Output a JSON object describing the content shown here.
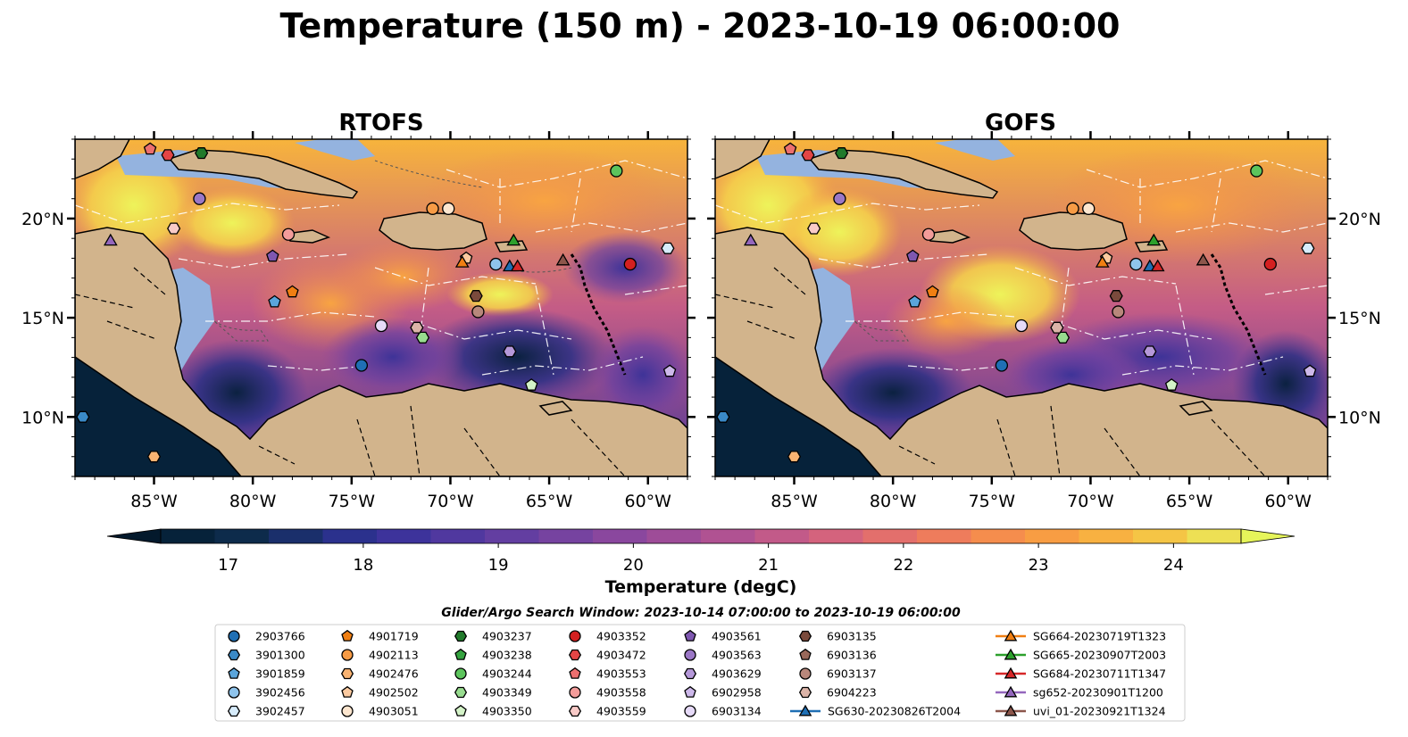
{
  "figure": {
    "title": "Temperature (150 m) - 2023-10-19 06:00:00"
  },
  "chart_data": {
    "type": "heatmap",
    "variable_label": "Temperature (degC)",
    "panels": [
      {
        "title": "RTOFS",
        "xlim": [
          -89,
          -58
        ],
        "ylim": [
          7,
          24
        ]
      },
      {
        "title": "GOFS",
        "xlim": [
          -89,
          -58
        ],
        "ylim": [
          7,
          24
        ]
      }
    ],
    "xticks": [
      {
        "value": -85,
        "label": "85°W"
      },
      {
        "value": -80,
        "label": "80°W"
      },
      {
        "value": -75,
        "label": "75°W"
      },
      {
        "value": -70,
        "label": "70°W"
      },
      {
        "value": -65,
        "label": "65°W"
      },
      {
        "value": -60,
        "label": "60°W"
      }
    ],
    "yticks": [
      {
        "value": 10,
        "label": "10°N"
      },
      {
        "value": 15,
        "label": "15°N"
      },
      {
        "value": 20,
        "label": "20°N"
      }
    ],
    "colorbar": {
      "vmin": 16.5,
      "vmax": 24.5,
      "extend": "both",
      "ticks": [
        17,
        18,
        19,
        20,
        21,
        22,
        23,
        24
      ],
      "colors": [
        "#06223a",
        "#0d2b4b",
        "#1a2f6b",
        "#2b318d",
        "#3d339b",
        "#50389f",
        "#633ea1",
        "#7643a0",
        "#8a479e",
        "#9e4c98",
        "#b05292",
        "#c25a89",
        "#d4637d",
        "#e36f6c",
        "#ee7c5c",
        "#f58d4d",
        "#f89d43",
        "#f8b141",
        "#f5c545",
        "#ede054"
      ],
      "under_color": "#03192c",
      "over_color": "#e6f55a"
    },
    "search_window": "Glider/Argo Search Window: 2023-10-14 07:00:00 to 2023-10-19 06:00:00",
    "legend": [
      {
        "name": "2903766",
        "marker": "circle",
        "color": "#1f6fb4"
      },
      {
        "name": "3901300",
        "marker": "hexagon",
        "color": "#3a89c6"
      },
      {
        "name": "3901859",
        "marker": "pentagon",
        "color": "#5aa5db"
      },
      {
        "name": "3902456",
        "marker": "circle",
        "color": "#8fc4ec"
      },
      {
        "name": "3902457",
        "marker": "hexagon",
        "color": "#d7ecfb"
      },
      {
        "name": "4901719",
        "marker": "pentagon",
        "color": "#f07f12"
      },
      {
        "name": "4902113",
        "marker": "circle",
        "color": "#f79b45"
      },
      {
        "name": "4902476",
        "marker": "hexagon",
        "color": "#f9b372"
      },
      {
        "name": "4902502",
        "marker": "pentagon",
        "color": "#fbcaa0"
      },
      {
        "name": "4903051",
        "marker": "circle",
        "color": "#fde6cf"
      },
      {
        "name": "4903237",
        "marker": "hexagon",
        "color": "#217a2b"
      },
      {
        "name": "4903238",
        "marker": "pentagon",
        "color": "#35a33f"
      },
      {
        "name": "4903244",
        "marker": "circle",
        "color": "#5cc45c"
      },
      {
        "name": "4903349",
        "marker": "hexagon",
        "color": "#98dc8f"
      },
      {
        "name": "4903350",
        "marker": "pentagon",
        "color": "#d4f3c8"
      },
      {
        "name": "4903352",
        "marker": "circle",
        "color": "#d42020"
      },
      {
        "name": "4903472",
        "marker": "hexagon",
        "color": "#e44545"
      },
      {
        "name": "4903553",
        "marker": "pentagon",
        "color": "#ec6f6f"
      },
      {
        "name": "4903558",
        "marker": "circle",
        "color": "#f39c9a"
      },
      {
        "name": "4903559",
        "marker": "hexagon",
        "color": "#f9cbc8"
      },
      {
        "name": "4903561",
        "marker": "pentagon",
        "color": "#7e57b0"
      },
      {
        "name": "4903563",
        "marker": "circle",
        "color": "#9b77c6"
      },
      {
        "name": "4903629",
        "marker": "hexagon",
        "color": "#b598d9"
      },
      {
        "name": "6902958",
        "marker": "pentagon",
        "color": "#cdb8ea"
      },
      {
        "name": "6903134",
        "marker": "circle",
        "color": "#e6daf8"
      },
      {
        "name": "6903135",
        "marker": "hexagon",
        "color": "#7a4a3c"
      },
      {
        "name": "6903136",
        "marker": "pentagon",
        "color": "#99685a"
      },
      {
        "name": "6903137",
        "marker": "circle",
        "color": "#b8877b"
      },
      {
        "name": "6904223",
        "marker": "hexagon",
        "color": "#dcb4a8"
      },
      {
        "name": "SG630-20230826T2004",
        "marker": "triangle",
        "color": "#1f6fb4"
      },
      {
        "name": "SG664-20230719T1323",
        "marker": "triangle",
        "color": "#f07f12"
      },
      {
        "name": "SG665-20230907T2003",
        "marker": "triangle",
        "color": "#2ca02c"
      },
      {
        "name": "SG684-20230711T1347",
        "marker": "triangle",
        "color": "#d62728"
      },
      {
        "name": "sg652-20230901T1200",
        "marker": "triangle",
        "color": "#9467bd"
      },
      {
        "name": "uvi_01-20230921T1324",
        "marker": "triangle",
        "color": "#8c564b"
      }
    ],
    "observations": [
      {
        "id": "2903766",
        "lon": -74.5,
        "lat": 12.6
      },
      {
        "id": "3901300",
        "lon": -88.6,
        "lat": 10.0
      },
      {
        "id": "3901859",
        "lon": -78.9,
        "lat": 15.8
      },
      {
        "id": "3902456",
        "lon": -67.7,
        "lat": 17.7
      },
      {
        "id": "3902457",
        "lon": -59.0,
        "lat": 18.5
      },
      {
        "id": "4901719",
        "lon": -78.0,
        "lat": 16.3
      },
      {
        "id": "4902113",
        "lon": -70.9,
        "lat": 20.5
      },
      {
        "id": "4902476",
        "lon": -85.0,
        "lat": 8.0
      },
      {
        "id": "4902502",
        "lon": -69.2,
        "lat": 18.0
      },
      {
        "id": "4903051",
        "lon": -70.1,
        "lat": 20.5
      },
      {
        "id": "4903237",
        "lon": -82.6,
        "lat": 23.3
      },
      {
        "id": "4903244",
        "lon": -61.6,
        "lat": 22.4
      },
      {
        "id": "4903349",
        "lon": -71.4,
        "lat": 14.0
      },
      {
        "id": "4903350",
        "lon": -65.9,
        "lat": 11.6
      },
      {
        "id": "4903352",
        "lon": -60.9,
        "lat": 17.7
      },
      {
        "id": "4903472",
        "lon": -84.3,
        "lat": 23.2
      },
      {
        "id": "4903553",
        "lon": -85.2,
        "lat": 23.5
      },
      {
        "id": "4903558",
        "lon": -78.2,
        "lat": 19.2
      },
      {
        "id": "4903559",
        "lon": -84.0,
        "lat": 19.5
      },
      {
        "id": "4903561",
        "lon": -79.0,
        "lat": 18.1
      },
      {
        "id": "4903563",
        "lon": -82.7,
        "lat": 21.0
      },
      {
        "id": "4903629",
        "lon": -67.0,
        "lat": 13.3
      },
      {
        "id": "6902958",
        "lon": -58.9,
        "lat": 12.3
      },
      {
        "id": "6903134",
        "lon": -73.5,
        "lat": 14.6
      },
      {
        "id": "6903135",
        "lon": -68.7,
        "lat": 16.1
      },
      {
        "id": "6903137",
        "lon": -68.6,
        "lat": 15.3
      },
      {
        "id": "6904223",
        "lon": -71.7,
        "lat": 14.5
      },
      {
        "id": "SG630-20230826T2004",
        "lon": -67.0,
        "lat": 17.6
      },
      {
        "id": "SG664-20230719T1323",
        "lon": -69.4,
        "lat": 17.8
      },
      {
        "id": "SG665-20230907T2003",
        "lon": -66.8,
        "lat": 18.9
      },
      {
        "id": "SG684-20230711T1347",
        "lon": -66.6,
        "lat": 17.6
      },
      {
        "id": "sg652-20230901T1200",
        "lon": -87.2,
        "lat": 18.9
      },
      {
        "id": "uvi_01-20230921T1324",
        "lon": -64.3,
        "lat": 17.9
      }
    ]
  }
}
